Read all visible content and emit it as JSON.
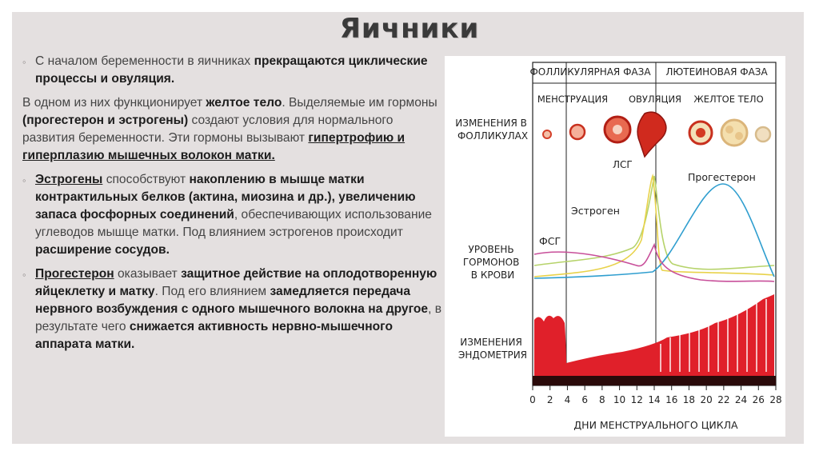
{
  "title": "Яичники",
  "text": {
    "p1_plain": "С началом беременности в яичниках ",
    "p1_bold": "прекращаются циклические процессы и овуляция.",
    "p2_a": "В одном из них функционирует ",
    "p2_b": "желтое тело",
    "p2_c": ". Выделяемые им гормоны ",
    "p2_d": "(прогестерон и эстрогены)",
    "p2_e": " создают условия для нормального развития беременности. Эти гормоны вызывают ",
    "p2_f": "гипертрофию и гиперплазию мышечных волокон матки.",
    "p3_a": "Эстрогены",
    "p3_b": " способствуют ",
    "p3_c": "накоплению в мышце матки контрактильных белков (актина, миозина и др.), увеличению запаса фосфорных соединений",
    "p3_d": ", обеспечивающих использование углеводов мышце матки. Под влиянием эстрогенов происходит ",
    "p3_e": "расширение сосудов.",
    "p4_a": "Прогестерон",
    "p4_b": " оказывает ",
    "p4_c": "защитное действие на оплодотворенную яйцеклетку и матку",
    "p4_d": ". Под его влиянием ",
    "p4_e": "замедляется передача нервного возбуждения с одного мышечного волокна на другое",
    "p4_f": ", в результате чего ",
    "p4_g": "снижается активность нервно-мышечного аппарата матки."
  },
  "figure": {
    "phase_follicular": "ФОЛЛИКУЛЯРНАЯ ФАЗА",
    "phase_luteal": "ЛЮТЕИНОВАЯ ФАЗА",
    "stage_menstruation": "МЕНСТРУАЦИЯ",
    "stage_ovulation": "ОВУЛЯЦИЯ",
    "stage_corpus": "ЖЕЛТОЕ ТЕЛО",
    "row_follicles": [
      "ИЗМЕНЕНИЯ В",
      "ФОЛЛИКУЛАХ"
    ],
    "row_hormones": [
      "УРОВЕНЬ",
      "ГОРМОНОВ",
      "В КРОВИ"
    ],
    "row_endometrium": [
      "ИЗМЕНЕНИЯ",
      "ЭНДОМЕТРИЯ"
    ],
    "label_lsg": "ЛСГ",
    "label_progesterone": "Прогестерон",
    "label_estrogen": "Эстроген",
    "label_fsg": "ФСГ",
    "x_axis_title": "ДНИ МЕНСТРУАЛЬНОГО ЦИКЛА",
    "x_ticks": [
      "0",
      "2",
      "4",
      "6",
      "8",
      "10",
      "12",
      "14",
      "16",
      "18",
      "20",
      "22",
      "24",
      "26",
      "28"
    ],
    "colors": {
      "lsg": "#e8d24a",
      "progesterone": "#2f9ecf",
      "estrogen": "#b6d36a",
      "fsg": "#c84f9a",
      "endometrium": "#e0202a"
    }
  }
}
